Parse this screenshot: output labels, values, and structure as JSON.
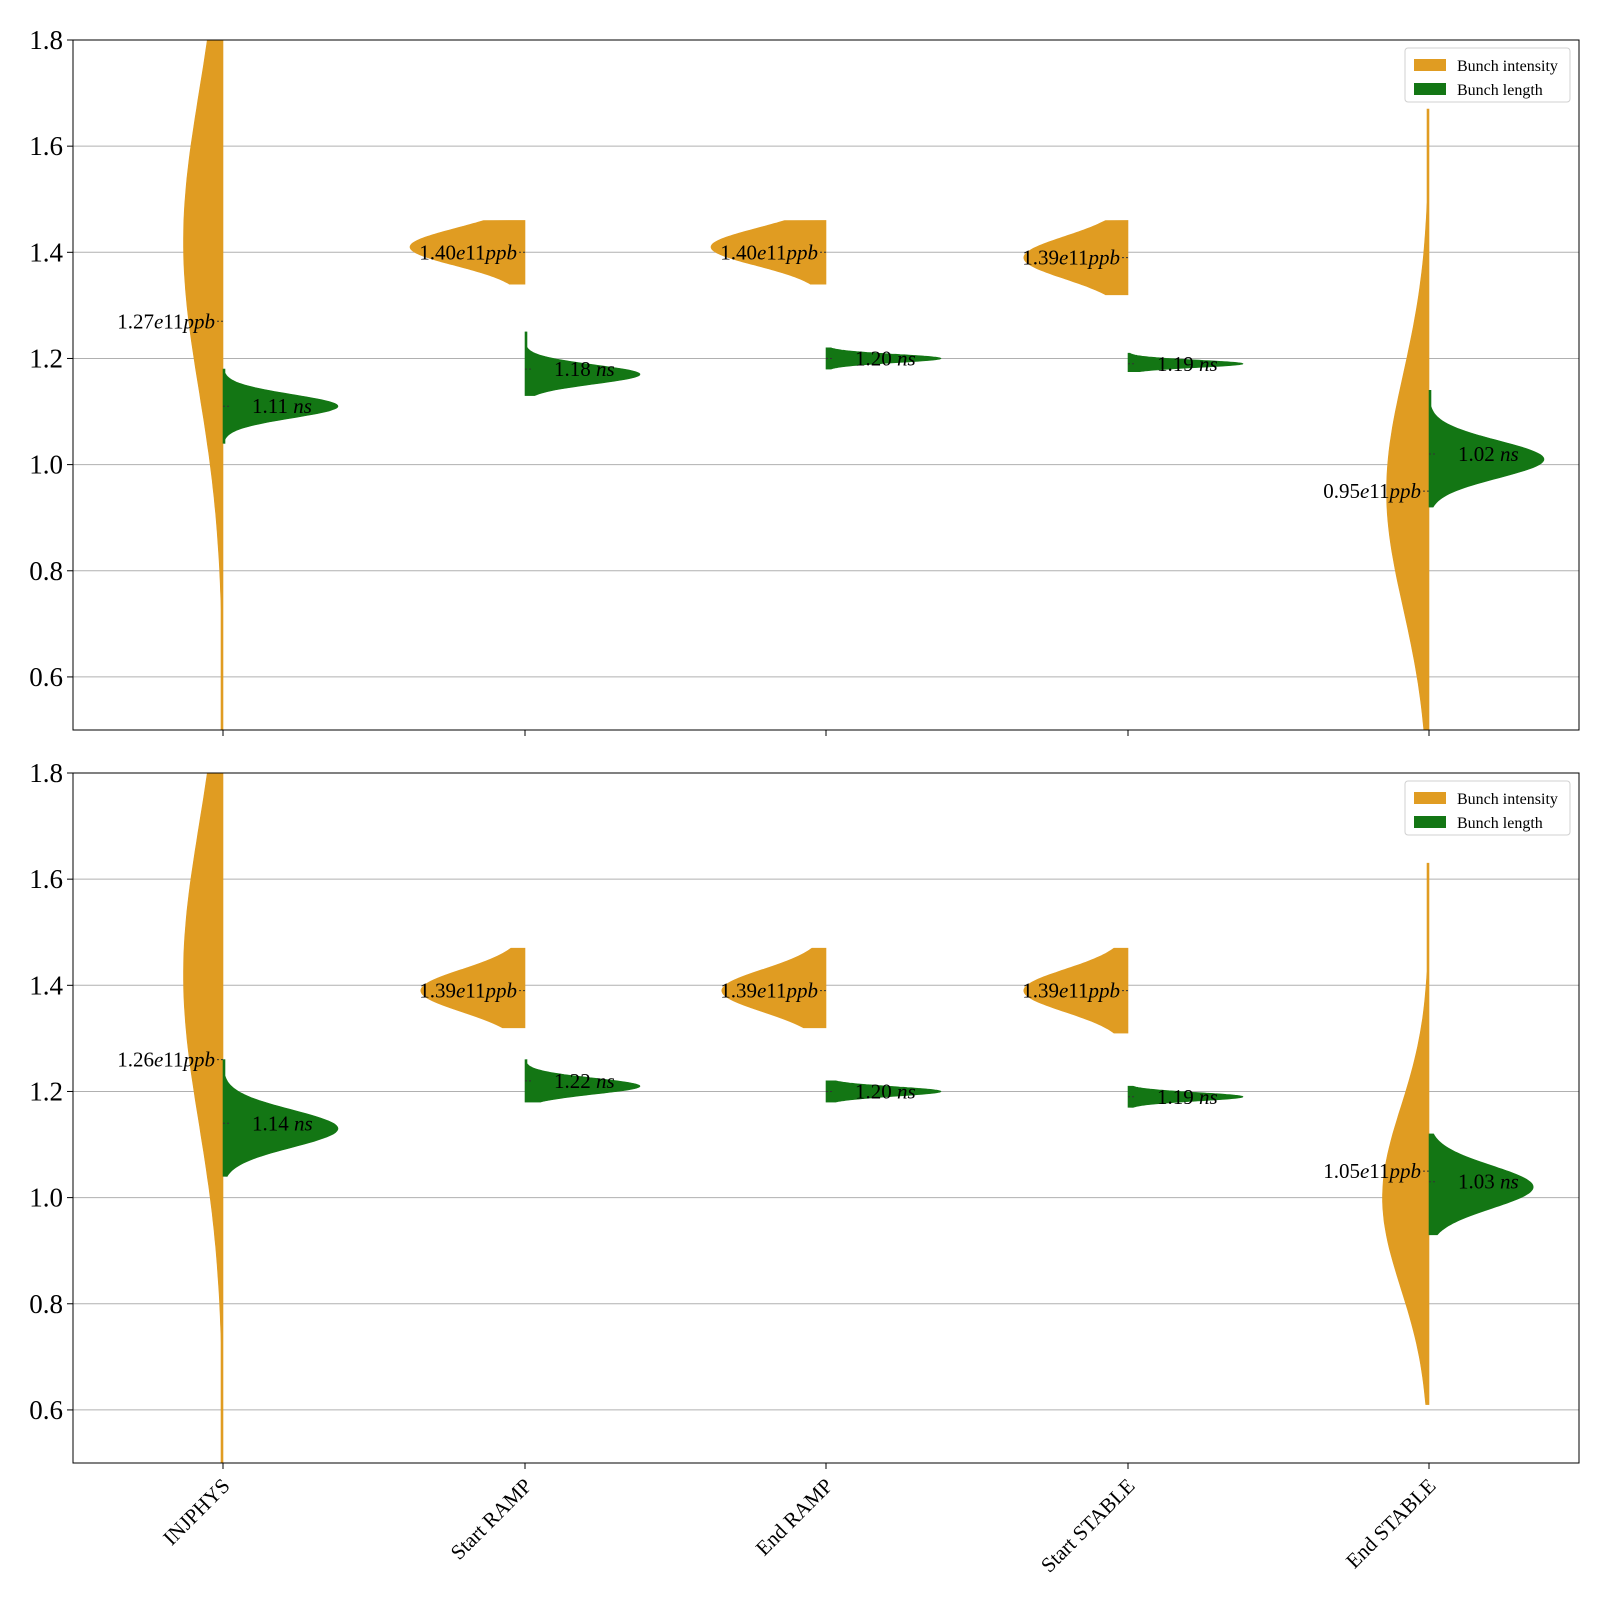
{
  "chart_data": [
    {
      "type": "violin",
      "ylim": [
        0.5,
        1.8
      ],
      "yticks": [
        "0.6",
        "0.8",
        "1.0",
        "1.2",
        "1.4",
        "1.6",
        "1.8"
      ],
      "grid": "horizontal",
      "legend": {
        "placement": "top-right",
        "entries": [
          "Bunch intensity",
          "Bunch length"
        ]
      },
      "categories": [
        "INJPHYS",
        "Start RAMP",
        "End RAMP",
        "Start STABLE",
        "End STABLE"
      ],
      "colors": {
        "intensity": "#e09c22",
        "length": "#137614"
      },
      "series": [
        {
          "name": "Bunch intensity",
          "side": "left",
          "points": [
            {
              "median": 1.27,
              "min": 0.5,
              "max": 1.8,
              "peak": 1.42,
              "spread": 0.28,
              "label": "1.27e11",
              "unit": "ppb"
            },
            {
              "median": 1.4,
              "min": 1.34,
              "max": 1.46,
              "peak": 1.41,
              "spread": 0.035,
              "label": "1.40e11",
              "unit": "ppb"
            },
            {
              "median": 1.4,
              "min": 1.34,
              "max": 1.46,
              "peak": 1.41,
              "spread": 0.035,
              "label": "1.40e11",
              "unit": "ppb"
            },
            {
              "median": 1.39,
              "min": 1.32,
              "max": 1.46,
              "peak": 1.39,
              "spread": 0.04,
              "label": "1.39e11",
              "unit": "ppb"
            },
            {
              "median": 0.95,
              "min": 0.5,
              "max": 1.67,
              "peak": 0.95,
              "spread": 0.22,
              "label": "0.95e11",
              "unit": "ppb"
            }
          ]
        },
        {
          "name": "Bunch length",
          "side": "right",
          "points": [
            {
              "median": 1.11,
              "min": 1.04,
              "max": 1.18,
              "peak": 1.11,
              "spread": 0.022,
              "label": "1.11",
              "unit": "ns"
            },
            {
              "median": 1.18,
              "min": 1.13,
              "max": 1.25,
              "peak": 1.17,
              "spread": 0.018,
              "label": "1.18",
              "unit": "ns"
            },
            {
              "median": 1.2,
              "min": 1.18,
              "max": 1.22,
              "peak": 1.2,
              "spread": 0.008,
              "label": "1.20",
              "unit": "ns"
            },
            {
              "median": 1.19,
              "min": 1.175,
              "max": 1.21,
              "peak": 1.19,
              "spread": 0.007,
              "label": "1.19",
              "unit": "ns"
            },
            {
              "median": 1.02,
              "min": 0.92,
              "max": 1.14,
              "peak": 1.01,
              "spread": 0.035,
              "label": "1.02",
              "unit": "ns"
            }
          ]
        }
      ]
    },
    {
      "type": "violin",
      "ylim": [
        0.5,
        1.8
      ],
      "yticks": [
        "0.6",
        "0.8",
        "1.0",
        "1.2",
        "1.4",
        "1.6",
        "1.8"
      ],
      "grid": "horizontal",
      "legend": {
        "placement": "top-right",
        "entries": [
          "Bunch intensity",
          "Bunch length"
        ]
      },
      "categories": [
        "INJPHYS",
        "Start RAMP",
        "End RAMP",
        "Start STABLE",
        "End STABLE"
      ],
      "colors": {
        "intensity": "#e09c22",
        "length": "#137614"
      },
      "series": [
        {
          "name": "Bunch intensity",
          "side": "left",
          "points": [
            {
              "median": 1.26,
              "min": 0.5,
              "max": 1.8,
              "peak": 1.42,
              "spread": 0.28,
              "label": "1.26e11",
              "unit": "ppb"
            },
            {
              "median": 1.39,
              "min": 1.32,
              "max": 1.47,
              "peak": 1.39,
              "spread": 0.04,
              "label": "1.39e11",
              "unit": "ppb"
            },
            {
              "median": 1.39,
              "min": 1.32,
              "max": 1.47,
              "peak": 1.39,
              "spread": 0.04,
              "label": "1.39e11",
              "unit": "ppb"
            },
            {
              "median": 1.39,
              "min": 1.31,
              "max": 1.47,
              "peak": 1.39,
              "spread": 0.04,
              "label": "1.39e11",
              "unit": "ppb"
            },
            {
              "median": 1.05,
              "min": 0.61,
              "max": 1.63,
              "peak": 1.0,
              "spread": 0.17,
              "label": "1.05e11",
              "unit": "ppb"
            }
          ]
        },
        {
          "name": "Bunch length",
          "side": "right",
          "points": [
            {
              "median": 1.14,
              "min": 1.04,
              "max": 1.26,
              "peak": 1.13,
              "spread": 0.035,
              "label": "1.14",
              "unit": "ns"
            },
            {
              "median": 1.22,
              "min": 1.18,
              "max": 1.26,
              "peak": 1.21,
              "spread": 0.015,
              "label": "1.22",
              "unit": "ns"
            },
            {
              "median": 1.2,
              "min": 1.18,
              "max": 1.22,
              "peak": 1.2,
              "spread": 0.009,
              "label": "1.20",
              "unit": "ns"
            },
            {
              "median": 1.19,
              "min": 1.17,
              "max": 1.21,
              "peak": 1.19,
              "spread": 0.008,
              "label": "1.19",
              "unit": "ns"
            },
            {
              "median": 1.03,
              "min": 0.93,
              "max": 1.12,
              "peak": 1.02,
              "spread": 0.04,
              "label": "1.03",
              "unit": "ns"
            }
          ]
        }
      ]
    }
  ]
}
